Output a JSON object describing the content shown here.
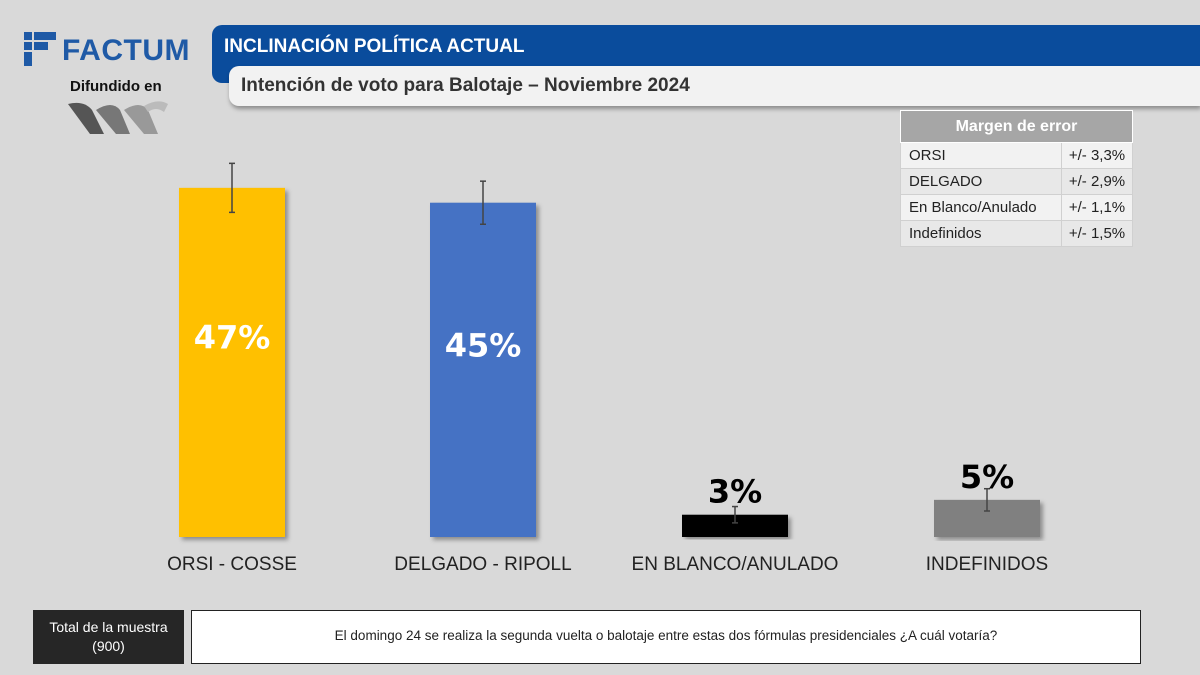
{
  "brand": {
    "name": "FACTUM",
    "disseminated": "Difundido en"
  },
  "header": {
    "title": "INCLINACIÓN POLÍTICA ACTUAL",
    "subtitle": "Intención de voto para Balotaje – Noviembre 2024"
  },
  "margin_table": {
    "title": "Margen de error",
    "rows": [
      {
        "label": "ORSI",
        "value": "+/- 3,3%"
      },
      {
        "label": "DELGADO",
        "value": "+/- 2,9%"
      },
      {
        "label": "En Blanco/Anulado",
        "value": "+/- 1,1%"
      },
      {
        "label": "Indefinidos",
        "value": "+/- 1,5%"
      }
    ]
  },
  "chart_data": {
    "type": "bar",
    "title": "",
    "xlabel": "",
    "ylabel": "",
    "ylim": [
      0,
      56
    ],
    "grid": false,
    "categories": [
      "ORSI - COSSE",
      "DELGADO - RIPOLL",
      "EN BLANCO/ANULADO",
      "INDEFINIDOS"
    ],
    "values": [
      47,
      45,
      3,
      5
    ],
    "labels": [
      "47%",
      "45%",
      "3%",
      "5%"
    ],
    "error_margins": [
      3.3,
      2.9,
      1.1,
      1.5
    ],
    "colors": [
      "#ffc000",
      "#4472c4",
      "#000000",
      "#808080"
    ],
    "label_inside": [
      true,
      true,
      false,
      false
    ]
  },
  "footer": {
    "sample_label": "Total de la muestra",
    "sample_value": "(900)",
    "question": "El domingo 24 se realiza la segunda vuelta o balotaje entre estas dos fórmulas presidenciales ¿A cuál votaría?"
  }
}
